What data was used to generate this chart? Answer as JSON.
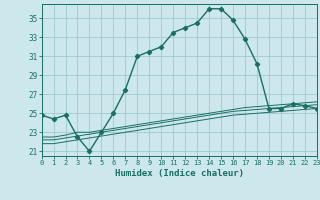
{
  "xlabel": "Humidex (Indice chaleur)",
  "background_color": "#cce8ec",
  "grid_color": "#a0c8d0",
  "line_color": "#1a6e64",
  "x_values": [
    0,
    1,
    2,
    3,
    4,
    5,
    6,
    7,
    8,
    9,
    10,
    11,
    12,
    13,
    14,
    15,
    16,
    17,
    18,
    19,
    20,
    21,
    22,
    23
  ],
  "main_curve": [
    24.8,
    24.4,
    24.8,
    22.5,
    21.0,
    23.0,
    25.0,
    27.5,
    31.0,
    31.5,
    32.0,
    33.5,
    34.0,
    34.5,
    36.0,
    36.0,
    34.8,
    32.8,
    30.2,
    25.5,
    25.5,
    26.0,
    25.8,
    25.5
  ],
  "flat_lines": [
    [
      22.5,
      22.5,
      22.7,
      23.0,
      23.0,
      23.2,
      23.4,
      23.6,
      23.8,
      24.0,
      24.2,
      24.4,
      24.6,
      24.8,
      25.0,
      25.2,
      25.4,
      25.6,
      25.7,
      25.8,
      25.9,
      26.0,
      26.1,
      26.2
    ],
    [
      22.2,
      22.2,
      22.4,
      22.6,
      22.8,
      23.0,
      23.2,
      23.4,
      23.6,
      23.8,
      24.0,
      24.2,
      24.4,
      24.6,
      24.8,
      25.0,
      25.2,
      25.3,
      25.4,
      25.5,
      25.6,
      25.7,
      25.8,
      25.9
    ],
    [
      21.8,
      21.8,
      22.0,
      22.2,
      22.4,
      22.6,
      22.8,
      23.0,
      23.2,
      23.4,
      23.6,
      23.8,
      24.0,
      24.2,
      24.4,
      24.6,
      24.8,
      24.9,
      25.0,
      25.1,
      25.2,
      25.3,
      25.4,
      25.5
    ]
  ],
  "xlim": [
    0,
    23
  ],
  "ylim": [
    20.5,
    36.5
  ],
  "yticks": [
    21,
    23,
    25,
    27,
    29,
    31,
    33,
    35
  ],
  "xticks": [
    0,
    1,
    2,
    3,
    4,
    5,
    6,
    7,
    8,
    9,
    10,
    11,
    12,
    13,
    14,
    15,
    16,
    17,
    18,
    19,
    20,
    21,
    22,
    23
  ]
}
